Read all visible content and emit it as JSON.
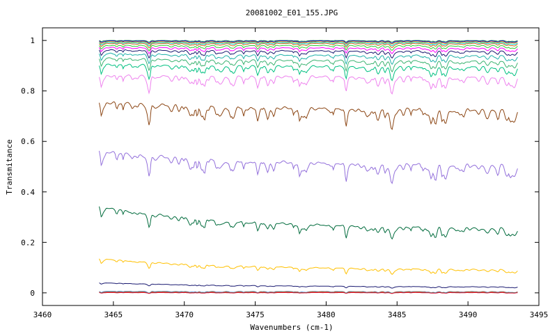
{
  "chart_data": {
    "type": "line",
    "title": "20081002_E01_155.JPG",
    "xlabel": "Wavenumbers (cm-1)",
    "ylabel": "Transmitance",
    "xlim": [
      3460,
      3495
    ],
    "ylim": [
      -0.05,
      1.05
    ],
    "x_ticks": [
      3460,
      3465,
      3470,
      3475,
      3480,
      3485,
      3490,
      3495
    ],
    "y_ticks": [
      0,
      0.2,
      0.4,
      0.6,
      0.8,
      1
    ],
    "y_tick_labels": [
      "0",
      "0.2",
      "0.4",
      "0.6",
      "0.8",
      "1"
    ],
    "x_range_data": [
      3464,
      3493.5
    ],
    "grid": false,
    "legend": "none",
    "series": [
      {
        "color": "#2e8b57",
        "start": 1.0,
        "end": 1.0,
        "amp": 0.002
      },
      {
        "color": "#0000cd",
        "start": 0.998,
        "end": 0.998,
        "amp": 0.003
      },
      {
        "color": "#ffa500",
        "start": 0.995,
        "end": 0.995,
        "amp": 0.003
      },
      {
        "color": "#00ced1",
        "start": 0.992,
        "end": 0.992,
        "amp": 0.004
      },
      {
        "color": "#d2691e",
        "start": 0.988,
        "end": 0.988,
        "amp": 0.005
      },
      {
        "color": "#32cd32",
        "start": 0.98,
        "end": 0.98,
        "amp": 0.006
      },
      {
        "color": "#ff00ff",
        "start": 0.972,
        "end": 0.97,
        "amp": 0.007
      },
      {
        "color": "#191970",
        "start": 0.962,
        "end": 0.958,
        "amp": 0.009
      },
      {
        "color": "#20b2aa",
        "start": 0.948,
        "end": 0.94,
        "amp": 0.011
      },
      {
        "color": "#3cb371",
        "start": 0.93,
        "end": 0.918,
        "amp": 0.013
      },
      {
        "color": "#00c080",
        "start": 0.905,
        "end": 0.895,
        "amp": 0.016
      },
      {
        "color": "#ee82ee",
        "start": 0.86,
        "end": 0.855,
        "amp": 0.02
      },
      {
        "color": "#8b4513",
        "start": 0.755,
        "end": 0.725,
        "amp": 0.025
      },
      {
        "color": "#9370db",
        "start": 0.56,
        "end": 0.505,
        "amp": 0.025
      },
      {
        "color": "#006b3c",
        "start": 0.34,
        "end": 0.255,
        "amp": 0.016
      },
      {
        "color": "#ffc000",
        "start": 0.135,
        "end": 0.092,
        "amp": 0.007
      },
      {
        "color": "#191970",
        "start": 0.04,
        "end": 0.024,
        "amp": 0.002
      },
      {
        "color": "#1e90ff",
        "start": 0.006,
        "end": 0.005,
        "amp": 0.002
      },
      {
        "color": "#ff4500",
        "start": 0.004,
        "end": 0.004,
        "amp": 0.002
      },
      {
        "color": "#2e8b57",
        "start": 0.002,
        "end": 0.002,
        "amp": 0.001
      },
      {
        "color": "#dc143c",
        "start": 0.001,
        "end": 0.001,
        "amp": 0.001
      }
    ]
  }
}
